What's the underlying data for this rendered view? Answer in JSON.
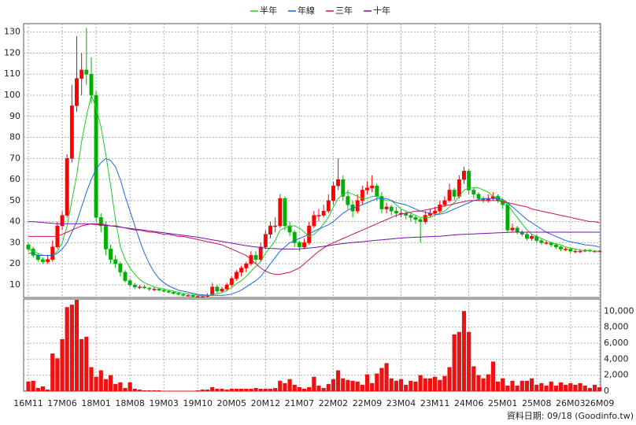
{
  "chart_data": {
    "type": "candlestick",
    "up_color": "#ff0000",
    "down_color": "#00b000",
    "volume_color": "#ee1111",
    "grid": true,
    "categories": [
      "16M11",
      null,
      null,
      null,
      null,
      null,
      null,
      "17M06",
      null,
      null,
      null,
      null,
      null,
      null,
      "18M01",
      null,
      null,
      null,
      null,
      null,
      null,
      "18M08",
      null,
      null,
      null,
      null,
      null,
      null,
      "19M03",
      null,
      null,
      null,
      null,
      null,
      null,
      "19M10",
      null,
      null,
      null,
      null,
      null,
      null,
      "20M05",
      null,
      null,
      null,
      null,
      null,
      null,
      "20M12",
      null,
      null,
      null,
      null,
      null,
      null,
      "21M07",
      null,
      null,
      null,
      null,
      null,
      null,
      "22M02",
      null,
      null,
      null,
      null,
      null,
      null,
      "22M09",
      null,
      null,
      null,
      null,
      null,
      null,
      "23M04",
      null,
      null,
      null,
      null,
      null,
      null,
      "23M11",
      null,
      null,
      null,
      null,
      null,
      null,
      "24M06",
      null,
      null,
      null,
      null,
      null,
      null,
      "25M01",
      null,
      null,
      null,
      null,
      null,
      null,
      "25M08",
      null,
      null,
      null,
      null,
      null,
      null,
      "26M03",
      null,
      null,
      null,
      null,
      null,
      "26M09"
    ],
    "ohlc": [
      [
        29,
        30,
        26,
        27
      ],
      [
        27,
        28,
        23,
        24
      ],
      [
        24,
        25,
        21,
        22
      ],
      [
        22,
        23,
        20,
        21
      ],
      [
        21,
        24,
        20,
        22
      ],
      [
        22,
        31,
        21,
        28
      ],
      [
        28,
        40,
        27,
        38
      ],
      [
        38,
        45,
        36,
        43
      ],
      [
        43,
        72,
        42,
        70
      ],
      [
        70,
        105,
        68,
        95
      ],
      [
        95,
        128,
        92,
        108
      ],
      [
        108,
        120,
        100,
        112
      ],
      [
        112,
        132,
        105,
        110
      ],
      [
        110,
        118,
        96,
        100
      ],
      [
        100,
        102,
        40,
        42
      ],
      [
        42,
        44,
        35,
        38
      ],
      [
        38,
        40,
        24,
        27
      ],
      [
        27,
        29,
        20,
        22
      ],
      [
        22,
        24,
        18,
        20
      ],
      [
        20,
        21,
        14,
        16
      ],
      [
        16,
        17,
        11,
        12
      ],
      [
        12,
        13,
        9,
        10
      ],
      [
        10,
        11,
        8,
        9
      ],
      [
        9,
        10,
        8,
        9
      ],
      [
        9,
        10,
        8,
        8.5
      ],
      [
        8.5,
        9,
        7,
        8
      ],
      [
        8,
        9,
        7,
        8
      ],
      [
        8,
        8.5,
        7,
        7.5
      ],
      [
        7.5,
        8,
        6.5,
        7
      ],
      [
        7,
        7.5,
        6,
        6.5
      ],
      [
        6.5,
        7,
        5.5,
        6
      ],
      [
        6,
        6.5,
        5,
        5.5
      ],
      [
        5.5,
        6,
        4.5,
        5
      ],
      [
        5,
        5.5,
        4.5,
        5
      ],
      [
        5,
        5.5,
        4,
        4.5
      ],
      [
        4.5,
        5,
        4,
        4.5
      ],
      [
        4.5,
        5,
        4,
        4.5
      ],
      [
        4.5,
        6,
        4,
        5
      ],
      [
        5,
        11,
        5,
        9
      ],
      [
        9,
        10,
        6,
        7
      ],
      [
        7,
        9,
        6,
        8
      ],
      [
        8,
        11,
        7,
        10
      ],
      [
        10,
        14,
        9,
        13
      ],
      [
        13,
        17,
        12,
        16
      ],
      [
        16,
        19,
        14,
        18
      ],
      [
        18,
        21,
        16,
        20
      ],
      [
        20,
        26,
        19,
        24
      ],
      [
        24,
        26,
        20,
        22
      ],
      [
        22,
        30,
        21,
        28
      ],
      [
        28,
        36,
        27,
        34
      ],
      [
        34,
        40,
        32,
        38
      ],
      [
        38,
        42,
        35,
        38
      ],
      [
        38,
        53,
        37,
        51
      ],
      [
        51,
        52,
        36,
        38
      ],
      [
        38,
        40,
        33,
        35
      ],
      [
        35,
        36,
        28,
        30
      ],
      [
        30,
        31,
        26,
        28
      ],
      [
        28,
        32,
        27,
        30
      ],
      [
        30,
        40,
        29,
        38
      ],
      [
        38,
        45,
        37,
        43
      ],
      [
        43,
        46,
        40,
        43
      ],
      [
        43,
        48,
        42,
        45
      ],
      [
        45,
        53,
        44,
        50
      ],
      [
        50,
        59,
        48,
        57
      ],
      [
        57,
        70,
        55,
        60
      ],
      [
        60,
        62,
        50,
        52
      ],
      [
        52,
        55,
        46,
        48
      ],
      [
        48,
        50,
        42,
        45
      ],
      [
        45,
        53,
        44,
        50
      ],
      [
        50,
        57,
        48,
        55
      ],
      [
        55,
        59,
        53,
        56
      ],
      [
        56,
        62,
        54,
        57
      ],
      [
        57,
        58,
        50,
        52
      ],
      [
        52,
        54,
        44,
        46
      ],
      [
        46,
        49,
        44,
        47
      ],
      [
        47,
        48,
        43,
        45
      ],
      [
        45,
        47,
        42,
        44
      ],
      [
        44,
        46,
        42,
        44
      ],
      [
        44,
        45,
        41,
        43
      ],
      [
        43,
        44,
        40,
        42
      ],
      [
        42,
        43,
        39,
        41
      ],
      [
        41,
        42,
        30,
        40
      ],
      [
        40,
        45,
        39,
        43
      ],
      [
        43,
        46,
        42,
        44
      ],
      [
        44,
        47,
        43,
        45
      ],
      [
        45,
        50,
        44,
        48
      ],
      [
        48,
        52,
        47,
        50
      ],
      [
        50,
        58,
        49,
        55
      ],
      [
        55,
        56,
        50,
        52
      ],
      [
        52,
        62,
        51,
        60
      ],
      [
        60,
        66,
        58,
        64
      ],
      [
        64,
        65,
        53,
        55
      ],
      [
        55,
        56,
        51,
        53
      ],
      [
        53,
        54,
        50,
        51
      ],
      [
        51,
        52,
        49,
        50
      ],
      [
        50,
        53,
        49,
        51
      ],
      [
        51,
        54,
        50,
        52
      ],
      [
        52,
        53,
        49,
        50
      ],
      [
        50,
        51,
        46,
        48
      ],
      [
        48,
        49,
        35,
        36
      ],
      [
        36,
        39,
        35,
        37
      ],
      [
        37,
        38,
        34,
        35
      ],
      [
        35,
        36,
        33,
        34
      ],
      [
        34,
        35,
        31,
        32
      ],
      [
        32,
        34,
        31,
        33
      ],
      [
        33,
        34,
        30,
        31
      ],
      [
        31,
        32,
        29,
        30
      ],
      [
        30,
        31,
        29,
        30
      ],
      [
        30,
        30.5,
        28,
        29
      ],
      [
        29,
        29.5,
        27,
        28
      ],
      [
        28,
        28.5,
        26,
        27
      ],
      [
        27,
        28,
        26,
        27
      ],
      [
        27,
        27.5,
        25,
        26
      ],
      [
        26,
        27,
        25,
        26
      ],
      [
        26,
        27,
        25,
        26
      ],
      [
        26,
        27,
        25.5,
        26.5
      ],
      [
        26.5,
        27,
        25.5,
        26
      ],
      [
        26,
        26.5,
        25.5,
        26
      ],
      [
        26,
        26.5,
        25.5,
        26
      ]
    ],
    "volume": [
      1200,
      1300,
      400,
      600,
      200,
      4700,
      4100,
      6500,
      10500,
      10800,
      11400,
      6500,
      6800,
      3000,
      1800,
      2600,
      1500,
      2000,
      900,
      1100,
      400,
      1100,
      300,
      200,
      100,
      100,
      100,
      100,
      50,
      50,
      50,
      50,
      50,
      50,
      50,
      100,
      200,
      200,
      500,
      300,
      300,
      200,
      300,
      300,
      300,
      300,
      300,
      400,
      300,
      300,
      300,
      400,
      1300,
      1000,
      1500,
      800,
      500,
      300,
      500,
      1800,
      700,
      400,
      900,
      1500,
      2600,
      1600,
      1400,
      1300,
      1200,
      800,
      2100,
      1000,
      2200,
      2900,
      3500,
      1600,
      1300,
      1500,
      800,
      1300,
      1200,
      2000,
      1600,
      1600,
      1800,
      1400,
      1900,
      3000,
      7100,
      7400,
      10000,
      7400,
      3100,
      2000,
      1600,
      2100,
      3700,
      1200,
      1600,
      700,
      1300,
      700,
      1300,
      1300,
      1600,
      800,
      1000,
      700,
      1200,
      700,
      1100,
      800,
      1000,
      800,
      1000,
      700,
      400,
      800,
      500
    ],
    "series": [
      {
        "name": "半年",
        "color": "#22cc22",
        "values": [
          27,
          26,
          25,
          24,
          24,
          24,
          26,
          30,
          38,
          50,
          62,
          78,
          90,
          100,
          94,
          85,
          72,
          57,
          41,
          28,
          22,
          18,
          15,
          12.5,
          11,
          10,
          9,
          8.5,
          8,
          7.5,
          7,
          6.5,
          6,
          5.8,
          5.4,
          5,
          4.9,
          4.8,
          5.5,
          5.8,
          6.3,
          7.3,
          8.7,
          10.5,
          12,
          14,
          16.5,
          18.8,
          21,
          25,
          28,
          31,
          36,
          37,
          38,
          38,
          37,
          35,
          33,
          34,
          36,
          39,
          42,
          47,
          51,
          53,
          54,
          53,
          52,
          51,
          51,
          52,
          52,
          51,
          50,
          50,
          48,
          46,
          45,
          44,
          43,
          42,
          42,
          42,
          43,
          44,
          45,
          47,
          49,
          52,
          55,
          56,
          56,
          56,
          55,
          54,
          52,
          51,
          50,
          48,
          45,
          42,
          39,
          36,
          34,
          33,
          32,
          31,
          30,
          29.5,
          29,
          28,
          27.5,
          27,
          26.5,
          26.3,
          26.2,
          26,
          26
        ]
      },
      {
        "name": "年線",
        "color": "#1e64e6",
        "values": [
          25,
          25,
          24,
          24,
          24,
          24,
          25,
          27,
          30,
          35,
          40,
          47,
          54,
          60,
          65,
          68,
          70,
          69,
          66,
          60,
          52,
          45,
          38,
          31,
          25,
          20,
          16,
          13,
          11,
          9.5,
          8.5,
          7.5,
          7,
          6.5,
          6,
          5.5,
          5.3,
          5.1,
          5,
          5,
          5,
          5.2,
          5.6,
          6.5,
          7.5,
          9,
          10.5,
          12,
          14,
          17,
          20,
          23,
          26,
          28,
          30,
          31,
          32,
          33,
          34,
          35.5,
          36.5,
          37.5,
          38.5,
          40,
          42,
          44,
          45.5,
          46.5,
          47,
          48,
          49,
          50,
          51,
          51,
          51,
          50,
          49,
          48.5,
          48,
          47,
          46,
          45,
          44.5,
          44,
          43.5,
          43.5,
          44,
          45,
          46,
          47,
          48,
          49,
          50,
          50.5,
          51,
          51,
          51,
          51,
          50.5,
          49,
          47,
          45,
          43,
          41,
          39.5,
          38,
          36.5,
          35,
          34,
          33,
          32,
          31,
          30.5,
          30,
          29.5,
          29,
          28.8,
          28.5,
          28
        ]
      },
      {
        "name": "三年",
        "color": "#d0105a",
        "values": [
          33,
          33,
          33,
          33,
          33,
          33,
          33,
          34,
          35,
          36,
          37,
          38,
          38.5,
          39,
          39,
          39,
          38.5,
          38,
          38,
          37.5,
          37,
          36.5,
          36,
          36,
          35.5,
          35,
          35,
          34.5,
          34,
          34,
          33.5,
          33,
          33,
          32.5,
          32,
          31.5,
          31,
          30.5,
          30,
          29.5,
          29,
          28,
          27,
          26,
          25,
          24,
          22,
          20,
          18,
          16.5,
          15.5,
          15,
          15,
          15.5,
          16,
          17,
          18,
          20,
          22,
          24,
          26,
          27.5,
          29,
          30,
          31,
          32,
          33,
          34,
          35,
          36,
          37,
          38,
          39,
          40,
          41,
          42,
          43,
          43.5,
          44,
          44.5,
          45,
          45,
          45.5,
          46,
          46.5,
          47,
          47.5,
          48,
          48.5,
          49,
          49.5,
          50,
          50,
          50,
          50,
          50,
          50,
          50,
          49.5,
          49,
          48.5,
          48,
          47.5,
          47,
          46,
          45.5,
          45,
          44.5,
          44,
          43.5,
          43,
          42.5,
          42,
          41.5,
          41,
          40.5,
          40,
          40,
          39.5
        ]
      },
      {
        "name": "十年",
        "color": "#7a10a8",
        "values": [
          40,
          40,
          39.8,
          39.6,
          39.4,
          39.2,
          39,
          39,
          39,
          39,
          39,
          39,
          39,
          38.8,
          38.6,
          38.4,
          38.2,
          38,
          37.7,
          37.4,
          37.1,
          36.8,
          36.5,
          36.2,
          35.9,
          35.6,
          35.3,
          35,
          34.7,
          34.4,
          34.1,
          33.8,
          33.5,
          33.2,
          32.9,
          32.6,
          32.2,
          31.8,
          31.4,
          31,
          30.6,
          30.2,
          29.8,
          29.4,
          29,
          28.6,
          28.3,
          28,
          27.7,
          27.5,
          27.3,
          27.2,
          27.1,
          27,
          27,
          27,
          27.1,
          27.3,
          27.5,
          27.7,
          28,
          28.3,
          28.6,
          29,
          29.3,
          29.6,
          29.9,
          30.1,
          30.3,
          30.5,
          30.7,
          31,
          31.2,
          31.4,
          31.6,
          31.8,
          32,
          32.2,
          32.4,
          32.5,
          32.6,
          32.7,
          32.8,
          32.9,
          33,
          33.1,
          33.3,
          33.5,
          33.7,
          33.9,
          34,
          34.1,
          34.2,
          34.3,
          34.4,
          34.5,
          34.6,
          34.7,
          34.8,
          34.9,
          35,
          35,
          35,
          35,
          35,
          35,
          35,
          35,
          35,
          35,
          35,
          35,
          35,
          35,
          35,
          35,
          35,
          35,
          35
        ]
      }
    ],
    "ylim": [
      4,
      134
    ],
    "yticks": [
      10,
      20,
      30,
      40,
      50,
      60,
      70,
      80,
      90,
      100,
      110,
      120,
      130
    ],
    "y2lim": [
      0,
      11500
    ],
    "y2ticks": [
      0,
      {
        "value": 2000,
        "label": "2,000"
      },
      {
        "value": 4000,
        "label": "4,000"
      },
      {
        "value": 6000,
        "label": "6,000"
      },
      {
        "value": 8000,
        "label": "8,000"
      },
      {
        "value": 10000,
        "label": "10,000"
      }
    ],
    "footnote": "資料日期: 09/18 (Goodinfo.tw)"
  }
}
